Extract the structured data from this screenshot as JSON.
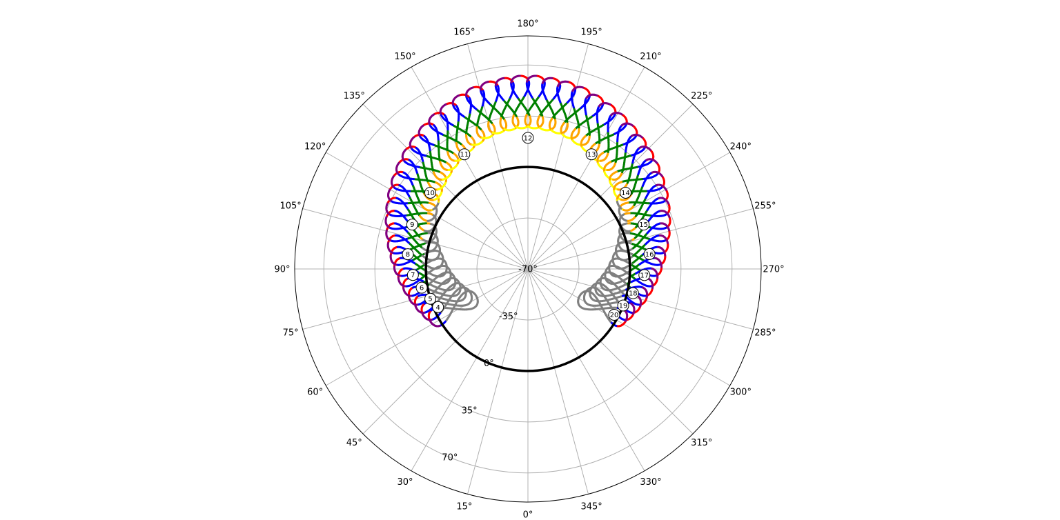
{
  "chart_data": {
    "type": "polar-scatter",
    "title": "",
    "angular_ticks_deg": [
      0,
      15,
      30,
      45,
      60,
      75,
      90,
      105,
      120,
      135,
      150,
      165,
      180,
      195,
      210,
      225,
      240,
      255,
      270,
      285,
      300,
      315,
      330,
      345
    ],
    "angular_zero": "bottom",
    "angular_direction": "clockwise",
    "radial_ticks": [
      -70,
      -35,
      0,
      35,
      70
    ],
    "radial_range": [
      -70,
      90
    ],
    "grid": true,
    "horizon_altitude": 0,
    "analemma_center_altitude_by_hour": [
      [
        4,
        -12
      ],
      [
        5,
        -4
      ],
      [
        6,
        4
      ],
      [
        7,
        13
      ],
      [
        8,
        22
      ],
      [
        9,
        30
      ],
      [
        10,
        37
      ],
      [
        11,
        43
      ],
      [
        12,
        45
      ],
      [
        13,
        43
      ],
      [
        14,
        37
      ],
      [
        15,
        30
      ],
      [
        16,
        22
      ],
      [
        17,
        13
      ],
      [
        18,
        4
      ],
      [
        19,
        -4
      ],
      [
        20,
        -12
      ]
    ],
    "hour_labels": [
      {
        "hour": "4",
        "azimuth": 67,
        "altitude": -3
      },
      {
        "hour": "5",
        "azimuth": 73,
        "altitude": 0
      },
      {
        "hour": "6",
        "azimuth": 80,
        "altitude": 4
      },
      {
        "hour": "7",
        "azimuth": 87,
        "altitude": 9
      },
      {
        "hour": "8",
        "azimuth": 97,
        "altitude": 13
      },
      {
        "hour": "9",
        "azimuth": 111,
        "altitude": 15
      },
      {
        "hour": "10",
        "azimuth": 128,
        "altitude": 15
      },
      {
        "hour": "11",
        "azimuth": 151,
        "altitude": 20
      },
      {
        "hour": "12",
        "azimuth": 180,
        "altitude": 20
      },
      {
        "hour": "13",
        "azimuth": 209,
        "altitude": 20
      },
      {
        "hour": "14",
        "azimuth": 232,
        "altitude": 15
      },
      {
        "hour": "15",
        "azimuth": 249,
        "altitude": 15
      },
      {
        "hour": "16",
        "azimuth": 263,
        "altitude": 14
      },
      {
        "hour": "17",
        "azimuth": 273,
        "altitude": 10
      },
      {
        "hour": "18",
        "azimuth": 283,
        "altitude": 4
      },
      {
        "hour": "19",
        "azimuth": 291,
        "altitude": 0
      },
      {
        "hour": "20",
        "azimuth": 298,
        "altitude": -3
      }
    ],
    "season_colors": {
      "below_horizon": "#808080",
      "sequence": [
        "#ff0000",
        "#0000ff",
        "#008000",
        "#ffa500",
        "#ffff00",
        "#ffa500",
        "#008000",
        "#0000ff",
        "#800080"
      ]
    }
  }
}
